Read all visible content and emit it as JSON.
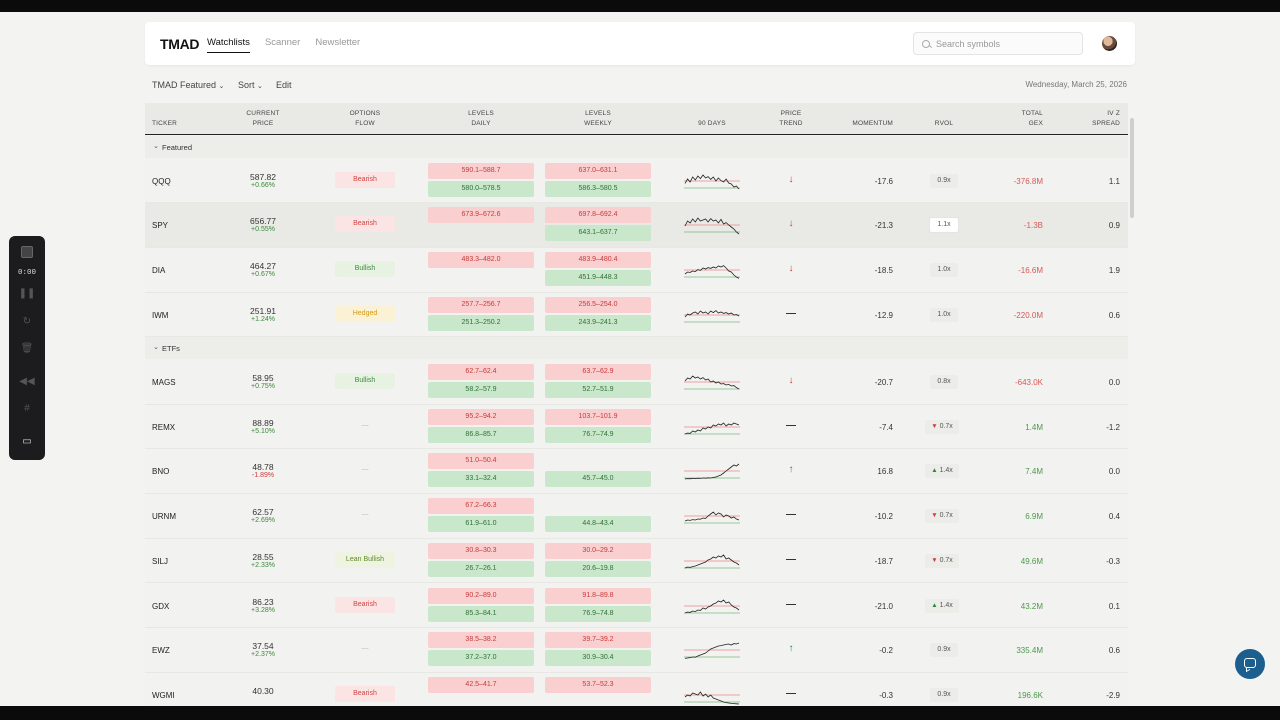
{
  "header": {
    "logo": "TMAD",
    "nav": [
      {
        "label": "Watchlists",
        "active": true
      },
      {
        "label": "Scanner",
        "active": false
      },
      {
        "label": "Newsletter",
        "active": false
      }
    ],
    "search_placeholder": "Search symbols"
  },
  "toolbar": {
    "watchlist": "TMAD Featured",
    "sort": "Sort",
    "edit": "Edit",
    "date": "Wednesday, March 25, 2026"
  },
  "columns": {
    "ticker": "TICKER",
    "price_1": "CURRENT",
    "price_2": "PRICE",
    "flow_1": "OPTIONS",
    "flow_2": "FLOW",
    "daily_1": "LEVELS",
    "daily_2": "DAILY",
    "weekly_1": "LEVELS",
    "weekly_2": "WEEKLY",
    "days": "90 DAYS",
    "trend_1": "PRICE",
    "trend_2": "TREND",
    "momentum": "MOMENTUM",
    "rvol": "RVOL",
    "gex_1": "TOTAL",
    "gex_2": "GEX",
    "iv_1": "IV Z",
    "iv_2": "SPREAD"
  },
  "sections": [
    {
      "label": "Featured",
      "rows": [
        {
          "ticker": "QQQ",
          "price": "587.82",
          "change": "+0.66%",
          "change_dir": "up",
          "flow": "Bearish",
          "flow_type": "bear",
          "daily_top": "590.1–588.7",
          "daily_bot": "580.0–578.5",
          "weekly_top": "637.0–631.1",
          "weekly_bot": "586.3–580.5",
          "trend": "down",
          "momentum": "-17.6",
          "rvol": "0.9x",
          "rvol_dir": "",
          "gex": "-376.8M",
          "gex_sign": "neg",
          "ivz": "1.1"
        },
        {
          "ticker": "SPY",
          "price": "656.77",
          "change": "+0.55%",
          "change_dir": "up",
          "flow": "Bearish",
          "flow_type": "bear",
          "daily_top": "673.9–672.6",
          "daily_bot": "",
          "weekly_top": "697.8–692.4",
          "weekly_bot": "643.1–637.7",
          "trend": "down",
          "momentum": "-21.3",
          "rvol": "1.1x",
          "rvol_dir": "",
          "gex": "-1.3B",
          "gex_sign": "neg",
          "ivz": "0.9"
        },
        {
          "ticker": "DIA",
          "price": "464.27",
          "change": "+0.67%",
          "change_dir": "up",
          "flow": "Bullish",
          "flow_type": "bull",
          "daily_top": "483.3–482.0",
          "daily_bot": "",
          "weekly_top": "483.9–480.4",
          "weekly_bot": "451.9–448.3",
          "trend": "down",
          "momentum": "-18.5",
          "rvol": "1.0x",
          "rvol_dir": "",
          "gex": "-16.6M",
          "gex_sign": "neg",
          "ivz": "1.9"
        },
        {
          "ticker": "IWM",
          "price": "251.91",
          "change": "+1.24%",
          "change_dir": "up",
          "flow": "Hedged",
          "flow_type": "hedg",
          "daily_top": "257.7–256.7",
          "daily_bot": "251.3–250.2",
          "weekly_top": "256.5–254.0",
          "weekly_bot": "243.9–241.3",
          "trend": "flat",
          "momentum": "-12.9",
          "rvol": "1.0x",
          "rvol_dir": "",
          "gex": "-220.0M",
          "gex_sign": "neg",
          "ivz": "0.6"
        }
      ]
    },
    {
      "label": "ETFs",
      "rows": [
        {
          "ticker": "MAGS",
          "price": "58.95",
          "change": "+0.75%",
          "change_dir": "up",
          "flow": "Bullish",
          "flow_type": "bull",
          "daily_top": "62.7–62.4",
          "daily_bot": "58.2–57.9",
          "weekly_top": "63.7–62.9",
          "weekly_bot": "52.7–51.9",
          "trend": "down",
          "momentum": "-20.7",
          "rvol": "0.8x",
          "rvol_dir": "",
          "gex": "-643.0K",
          "gex_sign": "neg",
          "ivz": "0.0"
        },
        {
          "ticker": "REMX",
          "price": "88.89",
          "change": "+5.10%",
          "change_dir": "up",
          "flow": "—",
          "flow_type": "none",
          "daily_top": "95.2–94.2",
          "daily_bot": "86.8–85.7",
          "weekly_top": "103.7–101.9",
          "weekly_bot": "76.7–74.9",
          "trend": "flat",
          "momentum": "-7.4",
          "rvol": "0.7x",
          "rvol_dir": "down",
          "gex": "1.4M",
          "gex_sign": "pos",
          "ivz": "-1.2"
        },
        {
          "ticker": "BNO",
          "price": "48.78",
          "change": "-1.89%",
          "change_dir": "down",
          "flow": "—",
          "flow_type": "none",
          "daily_top": "51.0–50.4",
          "daily_bot": "33.1–32.4",
          "weekly_top": "",
          "weekly_bot": "45.7–45.0",
          "trend": "up",
          "momentum": "16.8",
          "rvol": "1.4x",
          "rvol_dir": "up",
          "gex": "7.4M",
          "gex_sign": "pos",
          "ivz": "0.0"
        },
        {
          "ticker": "URNM",
          "price": "62.57",
          "change": "+2.69%",
          "change_dir": "up",
          "flow": "—",
          "flow_type": "none",
          "daily_top": "67.2–66.3",
          "daily_bot": "61.9–61.0",
          "weekly_top": "",
          "weekly_bot": "44.8–43.4",
          "trend": "flat",
          "momentum": "-10.2",
          "rvol": "0.7x",
          "rvol_dir": "down",
          "gex": "6.9M",
          "gex_sign": "pos",
          "ivz": "0.4"
        },
        {
          "ticker": "SILJ",
          "price": "28.55",
          "change": "+2.33%",
          "change_dir": "up",
          "flow": "Lean Bullish",
          "flow_type": "lean",
          "daily_top": "30.8–30.3",
          "daily_bot": "26.7–26.1",
          "weekly_top": "30.0–29.2",
          "weekly_bot": "20.6–19.8",
          "trend": "flat",
          "momentum": "-18.7",
          "rvol": "0.7x",
          "rvol_dir": "down",
          "gex": "49.6M",
          "gex_sign": "pos",
          "ivz": "-0.3"
        },
        {
          "ticker": "GDX",
          "price": "86.23",
          "change": "+3.28%",
          "change_dir": "up",
          "flow": "Bearish",
          "flow_type": "bear",
          "daily_top": "90.2–89.0",
          "daily_bot": "85.3–84.1",
          "weekly_top": "91.8–89.8",
          "weekly_bot": "76.9–74.8",
          "trend": "flat",
          "momentum": "-21.0",
          "rvol": "1.4x",
          "rvol_dir": "up",
          "gex": "43.2M",
          "gex_sign": "pos",
          "ivz": "0.1"
        },
        {
          "ticker": "EWZ",
          "price": "37.54",
          "change": "+2.37%",
          "change_dir": "up",
          "flow": "—",
          "flow_type": "none",
          "daily_top": "38.5–38.2",
          "daily_bot": "37.2–37.0",
          "weekly_top": "39.7–39.2",
          "weekly_bot": "30.9–30.4",
          "trend": "up",
          "momentum": "-0.2",
          "rvol": "0.9x",
          "rvol_dir": "",
          "gex": "335.4M",
          "gex_sign": "pos",
          "ivz": "0.6"
        },
        {
          "ticker": "WGMI",
          "price": "40.30",
          "change": "",
          "change_dir": "up",
          "flow": "Bearish",
          "flow_type": "bear",
          "daily_top": "42.5–41.7",
          "daily_bot": "",
          "weekly_top": "53.7–52.3",
          "weekly_bot": "",
          "trend": "flat",
          "momentum": "-0.3",
          "rvol": "0.9x",
          "rvol_dir": "",
          "gex": "196.6K",
          "gex_sign": "pos",
          "ivz": "-2.9"
        }
      ]
    }
  ],
  "sparklines": {
    "QQQ": [
      62,
      40,
      55,
      30,
      45,
      25,
      38,
      20,
      35,
      28,
      42,
      30,
      50,
      35,
      48,
      55,
      40,
      60,
      65,
      80,
      75,
      90
    ],
    "SPY": [
      55,
      30,
      40,
      20,
      35,
      15,
      30,
      25,
      20,
      35,
      18,
      30,
      25,
      40,
      22,
      45,
      38,
      50,
      60,
      70,
      85,
      95
    ],
    "DIA": [
      70,
      60,
      62,
      55,
      58,
      48,
      52,
      40,
      45,
      38,
      42,
      35,
      40,
      30,
      35,
      28,
      40,
      55,
      60,
      75,
      85,
      92
    ],
    "IWM": [
      60,
      45,
      50,
      40,
      35,
      45,
      30,
      40,
      35,
      45,
      30,
      38,
      28,
      40,
      35,
      42,
      38,
      45,
      40,
      50,
      48,
      55
    ],
    "MAGS": [
      45,
      30,
      35,
      20,
      30,
      25,
      35,
      28,
      40,
      35,
      50,
      45,
      55,
      50,
      60,
      58,
      65,
      62,
      70,
      68,
      78,
      85
    ],
    "REMX": [
      85,
      80,
      82,
      70,
      75,
      65,
      70,
      55,
      60,
      50,
      55,
      40,
      45,
      35,
      40,
      30,
      45,
      35,
      40,
      30,
      35,
      40
    ],
    "BNO": [
      90,
      88,
      89,
      87,
      88,
      86,
      87,
      85,
      86,
      84,
      85,
      82,
      80,
      75,
      70,
      60,
      50,
      40,
      30,
      20,
      25,
      15
    ],
    "URNM": [
      75,
      70,
      72,
      68,
      70,
      65,
      66,
      60,
      62,
      50,
      40,
      30,
      45,
      35,
      40,
      55,
      45,
      50,
      60,
      55,
      65,
      70
    ],
    "SILJ": [
      85,
      80,
      82,
      78,
      75,
      70,
      65,
      60,
      55,
      45,
      40,
      30,
      35,
      25,
      30,
      20,
      40,
      35,
      45,
      55,
      60,
      70
    ],
    "GDX": [
      85,
      80,
      82,
      75,
      78,
      70,
      72,
      60,
      65,
      55,
      50,
      40,
      35,
      25,
      30,
      20,
      35,
      30,
      45,
      55,
      60,
      70
    ],
    "EWZ": [
      92,
      90,
      88,
      85,
      86,
      80,
      75,
      70,
      65,
      55,
      45,
      40,
      35,
      30,
      28,
      25,
      22,
      20,
      25,
      18,
      20,
      15
    ],
    "WGMI": [
      60,
      50,
      55,
      40,
      45,
      50,
      35,
      55,
      45,
      60,
      50,
      65,
      70,
      75,
      80,
      85,
      88,
      90,
      92,
      93,
      94,
      95
    ]
  },
  "recorder": {
    "timer": "0:00"
  }
}
